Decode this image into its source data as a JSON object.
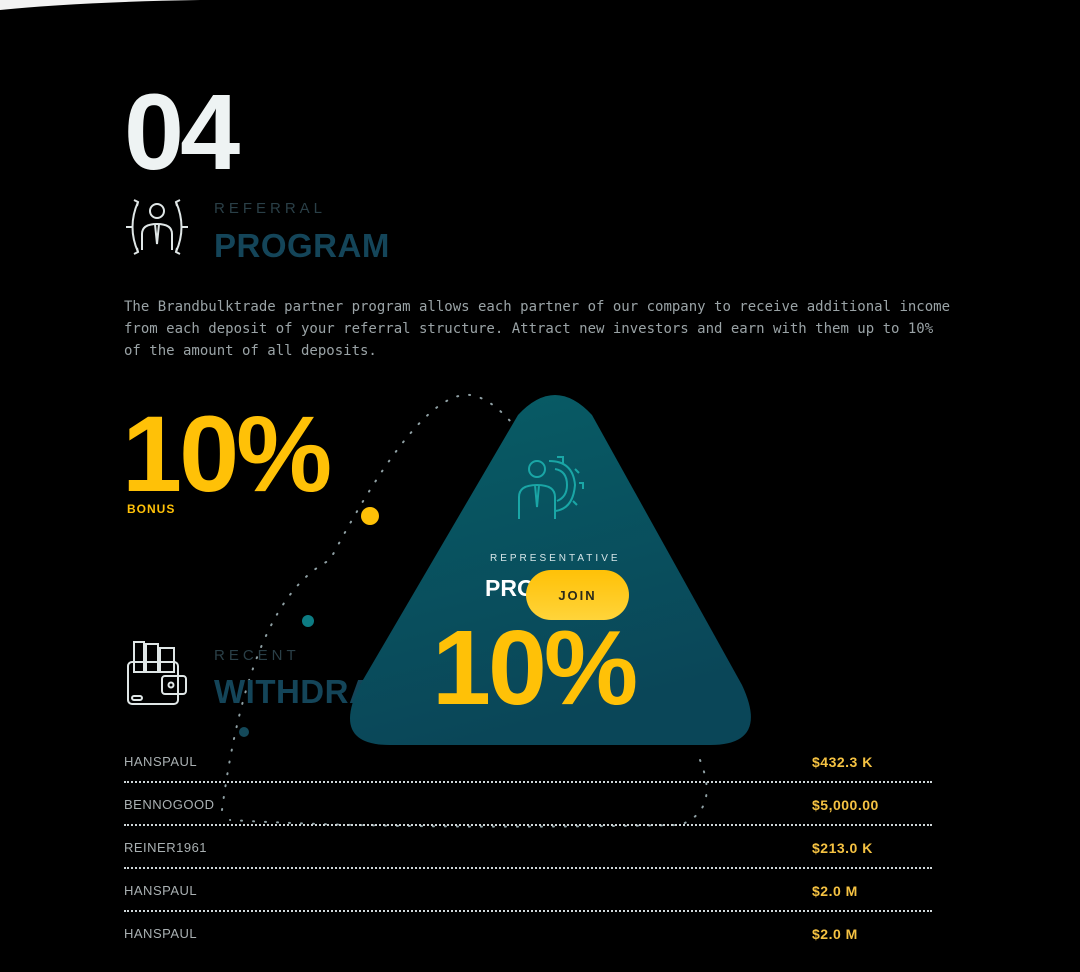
{
  "section_number": "04",
  "referral": {
    "kicker": "REFERRAL",
    "heading": "PROGRAM",
    "icon": "referral-network-person-icon",
    "description": "The Brandbulktrade partner program allows each partner of our company to receive additional income from each deposit of your referral structure. Attract new investors and earn with them up to 10% of the amount of all deposits."
  },
  "bonus": {
    "value": "10%",
    "label": "BONUS"
  },
  "representative_card": {
    "icon": "person-gear-icon",
    "kicker": "REPRESENTATIVE",
    "heading": "PRO",
    "join_label": "JOIN",
    "value": "10%"
  },
  "withdrawals": {
    "kicker": "RECENT",
    "heading": "WITHDRAWAL",
    "icon": "wallet-icon",
    "rows": [
      {
        "name": "HANSPAUL",
        "amount": "$432.3 K"
      },
      {
        "name": "BENNOGOOD",
        "amount": "$5,000.00"
      },
      {
        "name": "REINER1961",
        "amount": "$213.0 K"
      },
      {
        "name": "HANSPAUL",
        "amount": "$2.0 M"
      },
      {
        "name": "HANSPAUL",
        "amount": "$2.0 M"
      }
    ]
  },
  "colors": {
    "accent": "#ffc107",
    "teal": "#0a5560",
    "heading": "#144559",
    "background": "#000000"
  }
}
